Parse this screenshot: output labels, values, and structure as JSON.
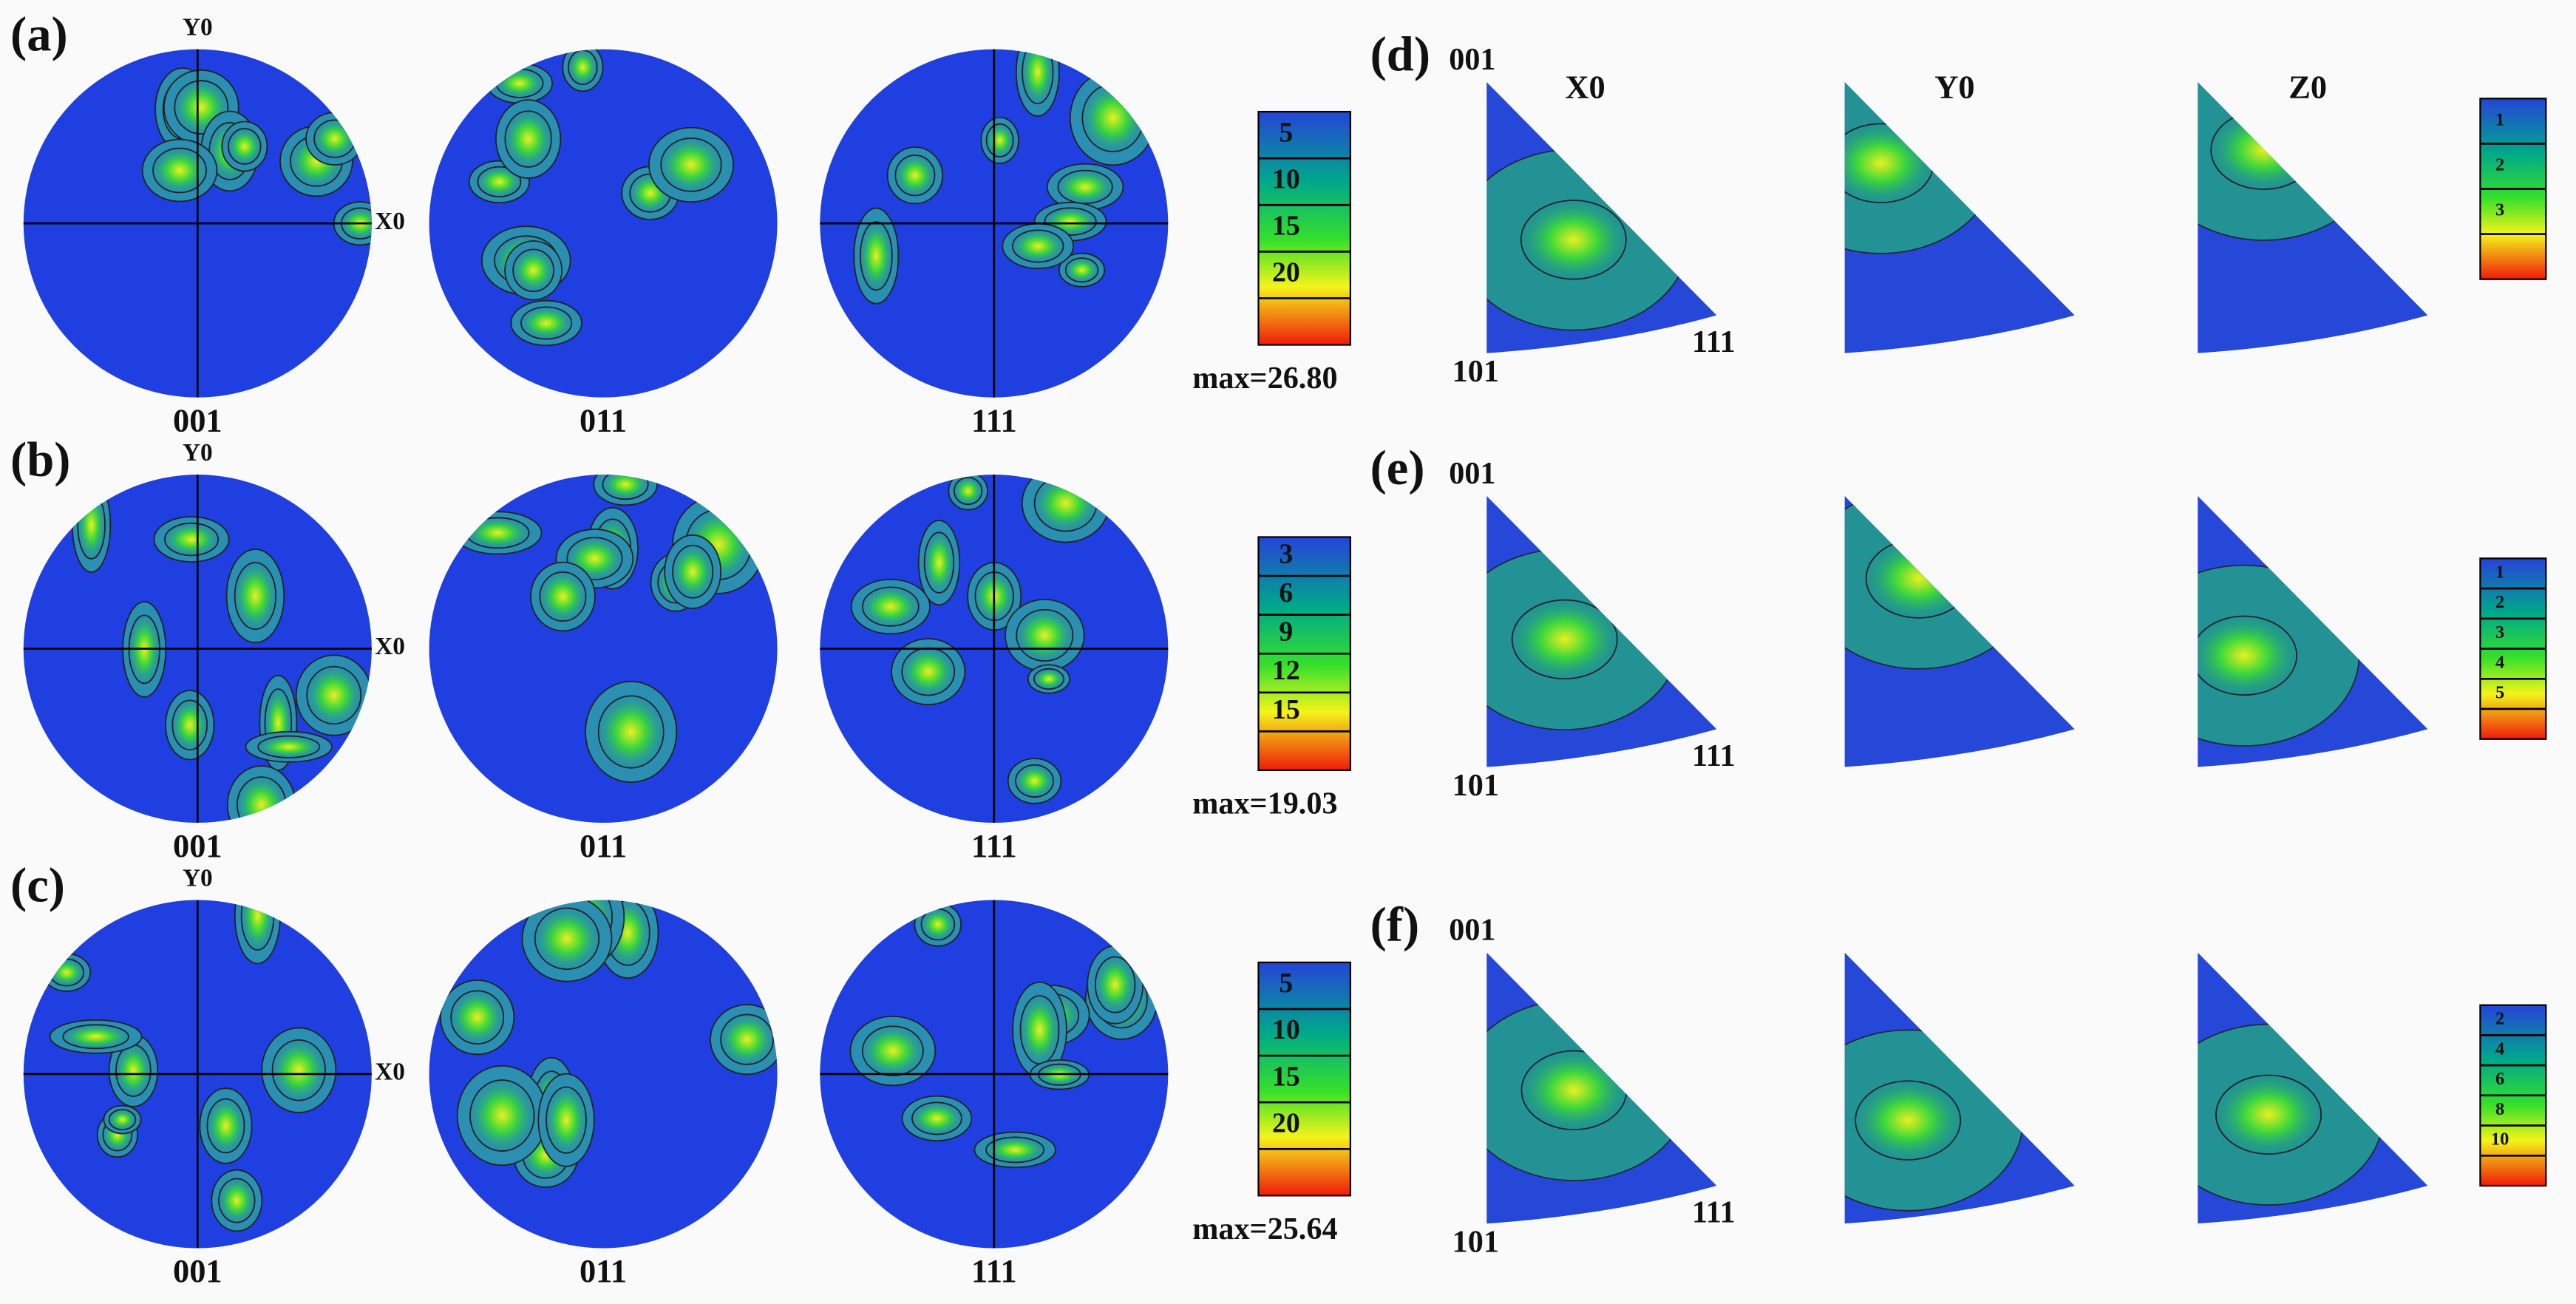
{
  "pole_figures": [
    {
      "label": "(a)",
      "top_axis": "Y0",
      "right_axis": "X0",
      "figures": [
        "001",
        "011",
        "111"
      ],
      "legend_ticks": [
        5,
        10,
        15,
        20
      ],
      "max": "max=26.80"
    },
    {
      "label": "(b)",
      "top_axis": "Y0",
      "right_axis": "X0",
      "figures": [
        "001",
        "011",
        "111"
      ],
      "legend_ticks": [
        3,
        6,
        9,
        12,
        15
      ],
      "max": "max=19.03"
    },
    {
      "label": "(c)",
      "top_axis": "Y0",
      "right_axis": "X0",
      "figures": [
        "001",
        "011",
        "111"
      ],
      "legend_ticks": [
        5,
        10,
        15,
        20
      ],
      "max": "max=25.64"
    }
  ],
  "inverse_pole_figures": {
    "columns": [
      "X0",
      "Y0",
      "Z0"
    ],
    "rows": [
      {
        "label": "(d)",
        "top_corner": "001",
        "left_corner": "101",
        "right_corner": "111",
        "legend_ticks": [
          1,
          2,
          3
        ]
      },
      {
        "label": "(e)",
        "top_corner": "001",
        "left_corner": "101",
        "right_corner": "111",
        "legend_ticks": [
          1,
          2,
          3,
          4,
          5
        ]
      },
      {
        "label": "(f)",
        "top_corner": "001",
        "left_corner": "101",
        "right_corner": "111",
        "legend_ticks": [
          2,
          4,
          6,
          8,
          10
        ]
      }
    ]
  }
}
